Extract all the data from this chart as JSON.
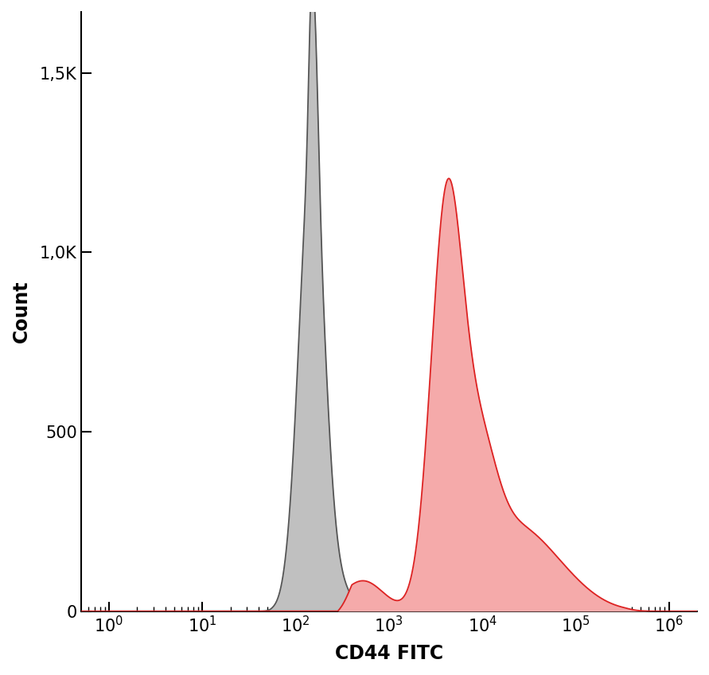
{
  "title": "",
  "xlabel": "CD44 FITC",
  "ylabel": "Count",
  "xlim_log": [
    -0.3,
    6.3
  ],
  "ylim": [
    0,
    1670
  ],
  "yticks": [
    0,
    500,
    1000,
    1500
  ],
  "ytick_labels": [
    "0",
    "500",
    "1,0K",
    "1,5K"
  ],
  "xticks": [
    0,
    1,
    2,
    3,
    4,
    5,
    6
  ],
  "background_color": "#ffffff",
  "gray_fill_color": "#c0c0c0",
  "gray_edge_color": "#555555",
  "red_fill_color": "#f5aaaa",
  "red_edge_color": "#dd2222",
  "xlabel_fontsize": 17,
  "ylabel_fontsize": 17,
  "tick_fontsize": 15
}
